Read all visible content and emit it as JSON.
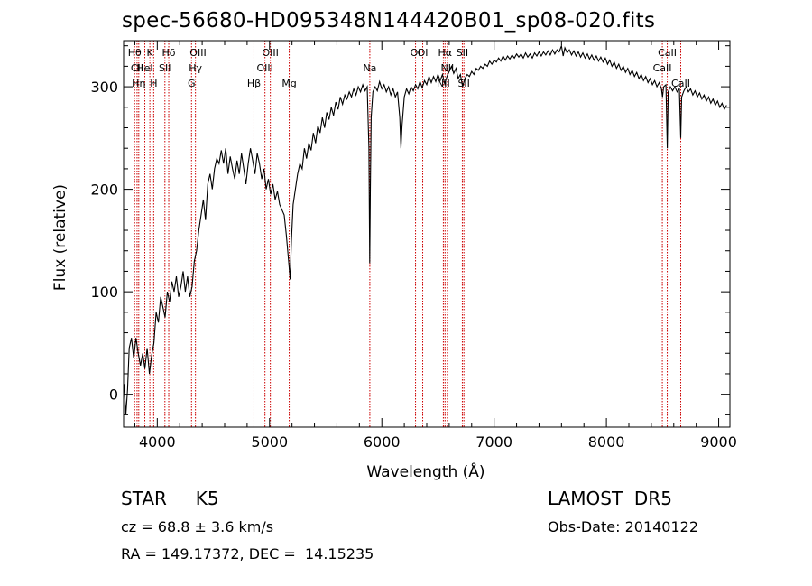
{
  "title": "spec-56680-HD095348N144420B01_sp08-020.fits",
  "info": {
    "class_label": "STAR",
    "subclass": "K5",
    "survey": "LAMOST  DR5",
    "cz": "cz = 68.8 ± 3.6 km/s",
    "obs_date": "Obs-Date: 20140122",
    "radec": "RA = 149.17372, DEC =  14.15235"
  },
  "chart_data": {
    "type": "line",
    "title": "spec-56680-HD095348N144420B01_sp08-020.fits",
    "xlabel": "Wavelength (Å)",
    "ylabel": "Flux (relative)",
    "xlim": [
      3700,
      9100
    ],
    "ylim": [
      -32,
      345
    ],
    "xticks": [
      4000,
      5000,
      6000,
      7000,
      8000,
      9000
    ],
    "yticks": [
      0,
      100,
      200,
      300
    ],
    "line_color": "#000000",
    "marker_color": "#cc0000",
    "series": [
      {
        "points": [
          [
            3705,
            10
          ],
          [
            3720,
            -20
          ],
          [
            3735,
            5
          ],
          [
            3750,
            45
          ],
          [
            3770,
            55
          ],
          [
            3790,
            35
          ],
          [
            3810,
            55
          ],
          [
            3830,
            40
          ],
          [
            3850,
            28
          ],
          [
            3870,
            40
          ],
          [
            3890,
            25
          ],
          [
            3910,
            45
          ],
          [
            3930,
            20
          ],
          [
            3950,
            38
          ],
          [
            3970,
            50
          ],
          [
            3990,
            80
          ],
          [
            4010,
            70
          ],
          [
            4030,
            95
          ],
          [
            4050,
            85
          ],
          [
            4070,
            75
          ],
          [
            4090,
            100
          ],
          [
            4110,
            90
          ],
          [
            4130,
            110
          ],
          [
            4150,
            100
          ],
          [
            4170,
            115
          ],
          [
            4190,
            95
          ],
          [
            4210,
            105
          ],
          [
            4230,
            120
          ],
          [
            4250,
            100
          ],
          [
            4270,
            115
          ],
          [
            4290,
            95
          ],
          [
            4310,
            105
          ],
          [
            4330,
            130
          ],
          [
            4350,
            140
          ],
          [
            4370,
            160
          ],
          [
            4390,
            175
          ],
          [
            4410,
            190
          ],
          [
            4430,
            170
          ],
          [
            4450,
            205
          ],
          [
            4470,
            215
          ],
          [
            4490,
            200
          ],
          [
            4510,
            220
          ],
          [
            4530,
            230
          ],
          [
            4550,
            225
          ],
          [
            4570,
            238
          ],
          [
            4590,
            225
          ],
          [
            4610,
            240
          ],
          [
            4630,
            215
          ],
          [
            4650,
            232
          ],
          [
            4670,
            220
          ],
          [
            4690,
            210
          ],
          [
            4710,
            228
          ],
          [
            4730,
            215
          ],
          [
            4750,
            235
          ],
          [
            4770,
            220
          ],
          [
            4790,
            205
          ],
          [
            4810,
            225
          ],
          [
            4830,
            240
          ],
          [
            4850,
            228
          ],
          [
            4870,
            215
          ],
          [
            4890,
            235
          ],
          [
            4910,
            225
          ],
          [
            4930,
            210
          ],
          [
            4950,
            220
          ],
          [
            4970,
            200
          ],
          [
            4990,
            210
          ],
          [
            5010,
            195
          ],
          [
            5030,
            205
          ],
          [
            5050,
            190
          ],
          [
            5070,
            198
          ],
          [
            5090,
            185
          ],
          [
            5110,
            180
          ],
          [
            5130,
            175
          ],
          [
            5150,
            155
          ],
          [
            5170,
            130
          ],
          [
            5183,
            112
          ],
          [
            5195,
            150
          ],
          [
            5210,
            185
          ],
          [
            5230,
            200
          ],
          [
            5250,
            215
          ],
          [
            5270,
            225
          ],
          [
            5290,
            220
          ],
          [
            5310,
            240
          ],
          [
            5330,
            230
          ],
          [
            5350,
            245
          ],
          [
            5370,
            238
          ],
          [
            5390,
            255
          ],
          [
            5410,
            245
          ],
          [
            5430,
            262
          ],
          [
            5450,
            255
          ],
          [
            5470,
            270
          ],
          [
            5490,
            260
          ],
          [
            5510,
            275
          ],
          [
            5530,
            268
          ],
          [
            5550,
            280
          ],
          [
            5570,
            272
          ],
          [
            5590,
            285
          ],
          [
            5610,
            278
          ],
          [
            5630,
            290
          ],
          [
            5650,
            283
          ],
          [
            5670,
            292
          ],
          [
            5690,
            288
          ],
          [
            5710,
            295
          ],
          [
            5730,
            290
          ],
          [
            5750,
            298
          ],
          [
            5770,
            292
          ],
          [
            5790,
            300
          ],
          [
            5810,
            295
          ],
          [
            5830,
            302
          ],
          [
            5850,
            296
          ],
          [
            5870,
            300
          ],
          [
            5885,
            240
          ],
          [
            5892,
            128
          ],
          [
            5898,
            200
          ],
          [
            5905,
            270
          ],
          [
            5920,
            295
          ],
          [
            5940,
            300
          ],
          [
            5960,
            296
          ],
          [
            5980,
            305
          ],
          [
            6000,
            298
          ],
          [
            6020,
            302
          ],
          [
            6040,
            295
          ],
          [
            6060,
            300
          ],
          [
            6080,
            292
          ],
          [
            6100,
            298
          ],
          [
            6120,
            290
          ],
          [
            6140,
            295
          ],
          [
            6160,
            270
          ],
          [
            6170,
            240
          ],
          [
            6180,
            262
          ],
          [
            6200,
            290
          ],
          [
            6220,
            298
          ],
          [
            6240,
            293
          ],
          [
            6260,
            300
          ],
          [
            6280,
            296
          ],
          [
            6300,
            302
          ],
          [
            6320,
            298
          ],
          [
            6340,
            305
          ],
          [
            6360,
            299
          ],
          [
            6380,
            306
          ],
          [
            6400,
            302
          ],
          [
            6420,
            310
          ],
          [
            6440,
            304
          ],
          [
            6460,
            310
          ],
          [
            6480,
            305
          ],
          [
            6500,
            312
          ],
          [
            6520,
            306
          ],
          [
            6540,
            312
          ],
          [
            6560,
            303
          ],
          [
            6580,
            310
          ],
          [
            6600,
            315
          ],
          [
            6620,
            320
          ],
          [
            6640,
            313
          ],
          [
            6660,
            318
          ],
          [
            6680,
            308
          ],
          [
            6700,
            312
          ],
          [
            6720,
            300
          ],
          [
            6740,
            308
          ],
          [
            6760,
            312
          ],
          [
            6780,
            310
          ],
          [
            6800,
            315
          ],
          [
            6820,
            312
          ],
          [
            6840,
            318
          ],
          [
            6860,
            316
          ],
          [
            6880,
            320
          ],
          [
            6900,
            318
          ],
          [
            6920,
            322
          ],
          [
            6940,
            320
          ],
          [
            6960,
            325
          ],
          [
            6980,
            322
          ],
          [
            7000,
            326
          ],
          [
            7020,
            324
          ],
          [
            7040,
            328
          ],
          [
            7060,
            325
          ],
          [
            7080,
            330
          ],
          [
            7100,
            326
          ],
          [
            7120,
            330
          ],
          [
            7140,
            327
          ],
          [
            7160,
            331
          ],
          [
            7180,
            328
          ],
          [
            7200,
            332
          ],
          [
            7220,
            329
          ],
          [
            7240,
            332
          ],
          [
            7260,
            328
          ],
          [
            7280,
            333
          ],
          [
            7300,
            329
          ],
          [
            7320,
            332
          ],
          [
            7340,
            328
          ],
          [
            7360,
            333
          ],
          [
            7380,
            330
          ],
          [
            7400,
            334
          ],
          [
            7420,
            330
          ],
          [
            7440,
            334
          ],
          [
            7460,
            331
          ],
          [
            7480,
            335
          ],
          [
            7500,
            331
          ],
          [
            7520,
            336
          ],
          [
            7540,
            332
          ],
          [
            7560,
            336
          ],
          [
            7580,
            334
          ],
          [
            7600,
            340
          ],
          [
            7615,
            330
          ],
          [
            7630,
            338
          ],
          [
            7650,
            333
          ],
          [
            7670,
            336
          ],
          [
            7690,
            331
          ],
          [
            7710,
            335
          ],
          [
            7730,
            330
          ],
          [
            7750,
            334
          ],
          [
            7770,
            329
          ],
          [
            7790,
            333
          ],
          [
            7810,
            328
          ],
          [
            7830,
            332
          ],
          [
            7850,
            327
          ],
          [
            7870,
            331
          ],
          [
            7890,
            326
          ],
          [
            7910,
            330
          ],
          [
            7930,
            325
          ],
          [
            7950,
            329
          ],
          [
            7970,
            324
          ],
          [
            7990,
            328
          ],
          [
            8010,
            322
          ],
          [
            8030,
            326
          ],
          [
            8050,
            320
          ],
          [
            8070,
            324
          ],
          [
            8090,
            318
          ],
          [
            8110,
            322
          ],
          [
            8130,
            316
          ],
          [
            8150,
            320
          ],
          [
            8170,
            314
          ],
          [
            8190,
            318
          ],
          [
            8210,
            312
          ],
          [
            8230,
            316
          ],
          [
            8250,
            310
          ],
          [
            8270,
            314
          ],
          [
            8290,
            308
          ],
          [
            8310,
            312
          ],
          [
            8330,
            306
          ],
          [
            8350,
            310
          ],
          [
            8370,
            304
          ],
          [
            8390,
            308
          ],
          [
            8410,
            302
          ],
          [
            8430,
            306
          ],
          [
            8450,
            300
          ],
          [
            8470,
            304
          ],
          [
            8490,
            298
          ],
          [
            8500,
            290
          ],
          [
            8510,
            300
          ],
          [
            8530,
            302
          ],
          [
            8542,
            240
          ],
          [
            8550,
            295
          ],
          [
            8570,
            300
          ],
          [
            8590,
            296
          ],
          [
            8610,
            300
          ],
          [
            8630,
            295
          ],
          [
            8650,
            298
          ],
          [
            8662,
            250
          ],
          [
            8670,
            290
          ],
          [
            8690,
            296
          ],
          [
            8710,
            300
          ],
          [
            8730,
            295
          ],
          [
            8750,
            298
          ],
          [
            8770,
            292
          ],
          [
            8790,
            296
          ],
          [
            8810,
            290
          ],
          [
            8830,
            294
          ],
          [
            8850,
            288
          ],
          [
            8870,
            292
          ],
          [
            8890,
            286
          ],
          [
            8910,
            290
          ],
          [
            8930,
            284
          ],
          [
            8950,
            288
          ],
          [
            8970,
            282
          ],
          [
            8990,
            286
          ],
          [
            9010,
            280
          ],
          [
            9030,
            284
          ],
          [
            9050,
            278
          ],
          [
            9070,
            282
          ]
        ]
      }
    ],
    "line_markers": [
      {
        "label": "Hθ",
        "x": 3798,
        "row": 1
      },
      {
        "label": "CII",
        "x": 3820,
        "row": 2
      },
      {
        "label": "Hη",
        "x": 3835,
        "row": 3
      },
      {
        "label": "K",
        "x": 3934,
        "row": 1
      },
      {
        "label": "HeI",
        "x": 3889,
        "row": 2
      },
      {
        "label": "H",
        "x": 3968,
        "row": 3
      },
      {
        "label": "Hδ",
        "x": 4102,
        "row": 1
      },
      {
        "label": "SII",
        "x": 4068,
        "row": 2
      },
      {
        "label": "OIII",
        "x": 4363,
        "row": 1
      },
      {
        "label": "Hγ",
        "x": 4340,
        "row": 2
      },
      {
        "label": "G",
        "x": 4305,
        "row": 3
      },
      {
        "label": "OIII",
        "x": 5007,
        "row": 1
      },
      {
        "label": "OIII",
        "x": 4959,
        "row": 2
      },
      {
        "label": "Hβ",
        "x": 4861,
        "row": 3
      },
      {
        "label": "Mg",
        "x": 5175,
        "row": 3
      },
      {
        "label": "Na",
        "x": 5893,
        "row": 2
      },
      {
        "label": "OI",
        "x": 6300,
        "row": 1
      },
      {
        "label": "OI",
        "x": 6364,
        "row": 1
      },
      {
        "label": "Hα",
        "x": 6563,
        "row": 1
      },
      {
        "label": "NII",
        "x": 6584,
        "row": 2
      },
      {
        "label": "SII",
        "x": 6717,
        "row": 1
      },
      {
        "label": "SII",
        "x": 6731,
        "row": 3
      },
      {
        "label": "NII",
        "x": 6548,
        "row": 3
      },
      {
        "label": "CaII",
        "x": 8542,
        "row": 1
      },
      {
        "label": "CaII",
        "x": 8498,
        "row": 2
      },
      {
        "label": "CaII",
        "x": 8662,
        "row": 3
      }
    ]
  }
}
